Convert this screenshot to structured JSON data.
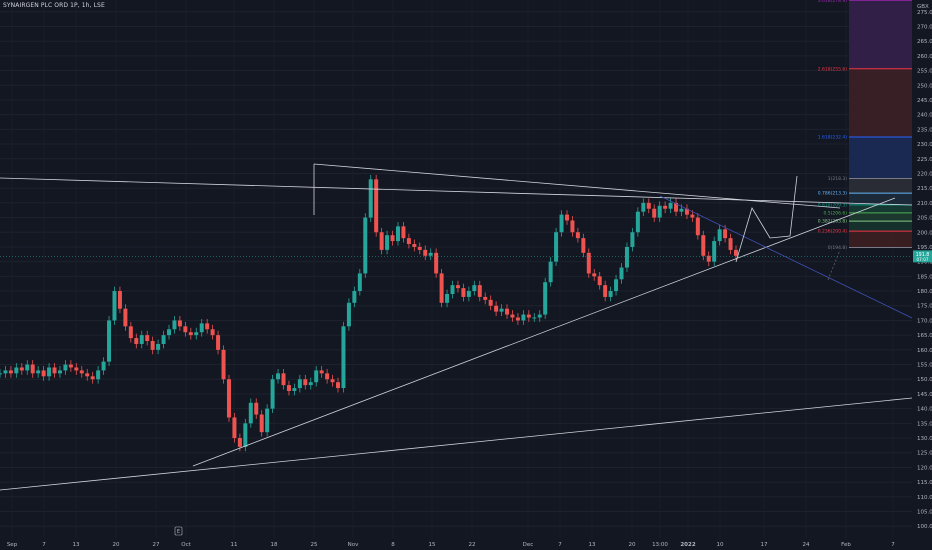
{
  "symbol_title": "SYNAIRGEN PLC ORD 1P, 1h, LSE",
  "currency": "GBX",
  "price_label_1": "191.8",
  "price_label_2": "07:07",
  "event_badge": "E",
  "colors": {
    "background": "#131722",
    "up": "#26a69a",
    "down": "#ef5350",
    "trendline": "#d1d4dc",
    "channel_line": "#3f51b5",
    "price_line": "#26a69a"
  },
  "chart_data": {
    "type": "candlestick",
    "y_axis_ticks": [
      100,
      105,
      110,
      115,
      120,
      125,
      130,
      135,
      140,
      145,
      150,
      155,
      160,
      165,
      170,
      175,
      180,
      185,
      190,
      195,
      200,
      205,
      210,
      215,
      220,
      225,
      230,
      235,
      240,
      245,
      250,
      255,
      260,
      265,
      270,
      275
    ],
    "y_range": [
      96,
      279
    ],
    "x_axis_labels": [
      "Sep",
      "7",
      "13",
      "20",
      "27",
      "Oct",
      "11",
      "18",
      "25",
      "Nov",
      "8",
      "15",
      "22",
      "Dec",
      "7",
      "13",
      "20",
      "13:00",
      "2022",
      "10",
      "17",
      "24",
      "Feb",
      "7"
    ],
    "series_close": [
      152,
      153,
      152,
      154,
      153,
      155,
      152,
      153,
      151,
      154,
      152,
      153,
      155,
      154,
      153,
      152,
      151,
      150,
      153,
      156,
      170,
      180,
      174,
      168,
      164,
      162,
      165,
      163,
      160,
      162,
      165,
      167,
      170,
      168,
      166,
      165,
      166,
      169,
      167,
      165,
      160,
      150,
      137,
      130,
      127,
      135,
      142,
      138,
      132,
      140,
      150,
      152,
      148,
      146,
      147,
      150,
      148,
      149,
      153,
      152,
      150,
      149,
      147,
      168,
      176,
      180,
      186,
      205,
      218,
      200,
      194,
      199,
      197,
      202,
      198,
      196,
      195,
      194,
      192,
      193,
      186,
      176,
      179,
      182,
      181,
      178,
      180,
      182,
      178,
      177,
      175,
      173,
      174,
      172,
      171,
      170,
      172,
      171,
      171,
      172,
      183,
      190,
      200,
      206,
      204,
      200,
      198,
      193,
      186,
      185,
      182,
      178,
      180,
      184,
      188,
      195,
      200,
      207,
      210,
      208,
      205,
      209,
      208,
      210,
      207,
      208,
      206,
      205,
      199,
      192,
      190,
      197,
      201,
      198,
      194,
      192
    ],
    "fibonacci_levels": [
      {
        "label": "0(194.8)",
        "value": 194.8,
        "color": "#787b86"
      },
      {
        "label": "0.236(200.4)",
        "value": 200.4,
        "color": "#f23645"
      },
      {
        "label": "0.382(203.8)",
        "value": 203.8,
        "color": "#81c784"
      },
      {
        "label": "0.5(206.6)",
        "value": 206.6,
        "color": "#4caf50"
      },
      {
        "label": "0.618(209.3)",
        "value": 209.3,
        "color": "#089981"
      },
      {
        "label": "0.786(213.3)",
        "value": 213.3,
        "color": "#64b5f6"
      },
      {
        "label": "1(218.3)",
        "value": 218.3,
        "color": "#787b86"
      },
      {
        "label": "1.618(232.4)",
        "value": 232.4,
        "color": "#2962ff"
      },
      {
        "label": "2.618(255.6)",
        "value": 255.6,
        "color": "#f23645"
      },
      {
        "label": "3.618(278.9)",
        "value": 278.9,
        "color": "#9c27b0"
      }
    ],
    "grid": true
  }
}
